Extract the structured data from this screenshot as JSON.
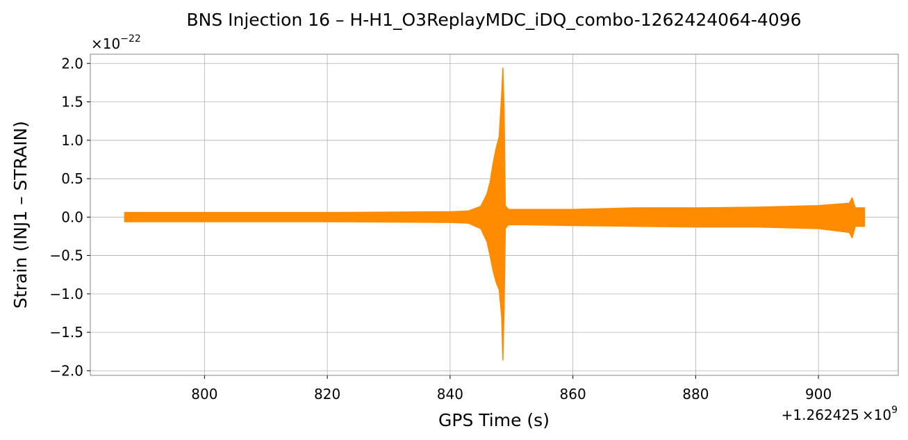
{
  "chart_data": {
    "type": "line",
    "title": "BNS Injection 16 – H-H1_O3ReplayMDC_iDQ_combo-1262424064-4096",
    "xlabel": "GPS Time (s)",
    "ylabel": "Strain (INJ1 – STRAIN)",
    "y_multiplier": "×10",
    "y_exponent": "−22",
    "x_offset_prefix": "+1.262425",
    "x_offset_times": "×10",
    "x_offset_exponent": "9",
    "xlim": [
      781.4,
      913.0
    ],
    "ylim": [
      -2.06,
      2.12
    ],
    "grid": true,
    "color": "#ff8c00",
    "x_ticks": [
      800,
      820,
      840,
      860,
      880,
      900
    ],
    "x_tick_labels": [
      "800",
      "820",
      "840",
      "860",
      "880",
      "900"
    ],
    "y_ticks": [
      2.0,
      1.5,
      1.0,
      0.5,
      0.0,
      -0.5,
      -1.0,
      -1.5,
      -2.0
    ],
    "y_tick_labels": [
      "2.0",
      "1.5",
      "1.0",
      "0.5",
      "0.0",
      "−0.5",
      "−1.0",
      "−1.5",
      "−2.0"
    ],
    "series": [
      {
        "x": [
          787.0,
          800.0,
          820.0,
          840.0,
          843.0,
          845.0,
          846.0,
          846.5,
          847.0,
          847.5,
          848.0,
          848.4,
          848.6,
          848.8,
          849.0,
          849.5,
          852.0,
          860.0,
          870.0,
          880.0,
          890.0,
          900.0,
          905.0,
          905.5,
          906.0,
          907.5
        ],
        "upper": [
          0.06,
          0.06,
          0.06,
          0.07,
          0.08,
          0.14,
          0.3,
          0.45,
          0.7,
          0.9,
          1.05,
          1.6,
          1.94,
          1.4,
          0.15,
          0.1,
          0.1,
          0.1,
          0.12,
          0.12,
          0.13,
          0.15,
          0.18,
          0.25,
          0.12,
          0.12
        ],
        "lower": [
          -0.06,
          -0.06,
          -0.06,
          -0.07,
          -0.08,
          -0.15,
          -0.32,
          -0.5,
          -0.7,
          -0.85,
          -0.95,
          -1.3,
          -1.86,
          -1.2,
          -0.15,
          -0.1,
          -0.1,
          -0.11,
          -0.12,
          -0.13,
          -0.13,
          -0.15,
          -0.2,
          -0.27,
          -0.12,
          -0.12
        ]
      }
    ]
  }
}
